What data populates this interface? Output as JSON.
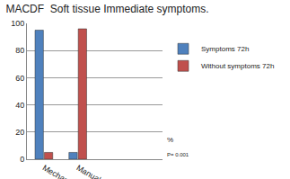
{
  "chart_data": {
    "type": "bar",
    "title": "MACDF  Soft tissue Immediate symptoms.",
    "categories": [
      "Mechanical",
      "Manual",
      null,
      null
    ],
    "series": [
      {
        "name": "Symptoms 72h",
        "color": "#4f81bd",
        "values": [
          95,
          5,
          null,
          null
        ]
      },
      {
        "name": "Without symptoms 72h",
        "color": "#c0504d",
        "values": [
          5,
          96,
          null,
          null
        ]
      }
    ],
    "ylim": [
      0,
      100
    ],
    "yticks": [
      0,
      20,
      40,
      60,
      80,
      100
    ],
    "grid": true,
    "legend": "right",
    "annotations": [
      "%",
      "P= 0.001"
    ]
  }
}
